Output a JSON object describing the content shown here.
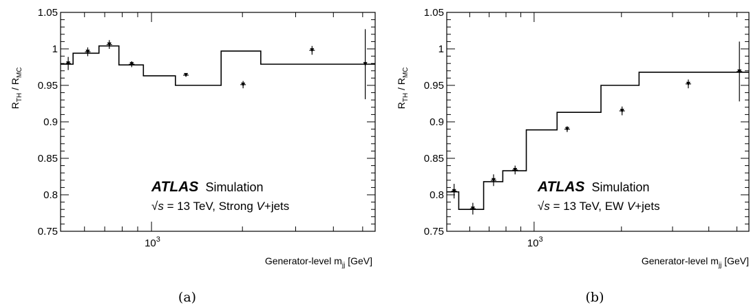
{
  "chart_data": [
    {
      "type": "line",
      "style": "step-histogram-with-error-bars",
      "caption": "(a)",
      "ylabel_main": "R",
      "ylabel_sub1": "TH",
      "ylabel_mid": " / R",
      "ylabel_sub2": "MC",
      "xlabel_main": "Generator-level m",
      "xlabel_sub": "jj",
      "xlabel_unit": " [GeV]",
      "x_scale": "log",
      "xlim": [
        500,
        5500
      ],
      "ylim": [
        0.75,
        1.05
      ],
      "y_ticks": [
        0.75,
        0.8,
        0.85,
        0.9,
        0.95,
        1,
        1.05
      ],
      "y_tick_labels": [
        "0.75",
        "0.8",
        "0.85",
        "0.9",
        "0.95",
        "1",
        "1.05"
      ],
      "x_tick_major": 1000,
      "x_tick_label_base": "10",
      "x_tick_label_exp": "3",
      "label_atlas": "ATLAS",
      "label_simulation": "Simulation",
      "label_energy_sqrt": "√s",
      "label_energy_rest": " = 13 TeV, Strong ",
      "label_process_v": "V",
      "label_process_rest": "+jets",
      "bin_edges": [
        500,
        550,
        670,
        780,
        940,
        1200,
        1700,
        2300,
        3800,
        5500
      ],
      "values": [
        0.979,
        0.994,
        1.004,
        0.978,
        0.963,
        0.95,
        0.997,
        0.979,
        0.979
      ],
      "points_x": [
        530,
        615,
        725,
        860,
        1300,
        2010,
        3400
      ],
      "points_y": [
        0.98,
        0.996,
        1.006,
        0.979,
        0.964,
        0.951,
        0.998
      ],
      "points_err": [
        0.009,
        0.006,
        0.006,
        0.004,
        0.002,
        0.005,
        0.006
      ],
      "last_point": {
        "x": 5100,
        "y": 0.979,
        "err": 0.048
      }
    },
    {
      "type": "line",
      "style": "step-histogram-with-error-bars",
      "caption": "(b)",
      "ylabel_main": "R",
      "ylabel_sub1": "TH",
      "ylabel_mid": " / R",
      "ylabel_sub2": "MC",
      "xlabel_main": "Generator-level m",
      "xlabel_sub": "jj",
      "xlabel_unit": " [GeV]",
      "x_scale": "log",
      "xlim": [
        500,
        5500
      ],
      "ylim": [
        0.75,
        1.05
      ],
      "y_ticks": [
        0.75,
        0.8,
        0.85,
        0.9,
        0.95,
        1,
        1.05
      ],
      "y_tick_labels": [
        "0.75",
        "0.8",
        "0.85",
        "0.9",
        "0.95",
        "1",
        "1.05"
      ],
      "x_tick_major": 1000,
      "x_tick_label_base": "10",
      "x_tick_label_exp": "3",
      "label_atlas": "ATLAS",
      "label_simulation": "Simulation",
      "label_energy_sqrt": "√s",
      "label_energy_rest": " = 13 TeV, EW ",
      "label_process_v": "V",
      "label_process_rest": "+jets",
      "bin_edges": [
        500,
        550,
        670,
        780,
        940,
        1200,
        1700,
        2300,
        3800,
        5500
      ],
      "values": [
        0.804,
        0.78,
        0.818,
        0.833,
        0.889,
        0.913,
        0.95,
        0.968,
        0.968
      ],
      "points_x": [
        530,
        615,
        725,
        860,
        1300,
        2010,
        3400
      ],
      "points_y": [
        0.805,
        0.781,
        0.82,
        0.834,
        0.89,
        0.915,
        0.952
      ],
      "points_err": [
        0.01,
        0.008,
        0.008,
        0.006,
        0.004,
        0.006,
        0.006
      ],
      "last_point": {
        "x": 5100,
        "y": 0.969,
        "err": 0.041
      }
    }
  ]
}
